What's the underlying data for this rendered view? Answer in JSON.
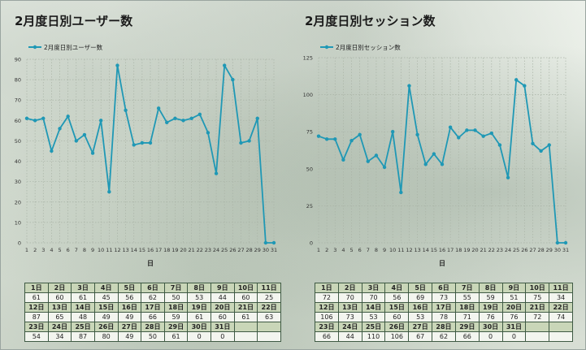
{
  "charts": {
    "left": {
      "title": "2月度日別ユーザー数",
      "chart_data": {
        "type": "line",
        "title": "2月度日別ユーザー数",
        "xlabel": "日",
        "ylabel": "",
        "x": [
          1,
          2,
          3,
          4,
          5,
          6,
          7,
          8,
          9,
          10,
          11,
          12,
          13,
          14,
          15,
          16,
          17,
          18,
          19,
          20,
          21,
          22,
          23,
          24,
          25,
          26,
          27,
          28,
          29,
          30,
          31
        ],
        "series": [
          {
            "name": "2月度日別ユーザー数",
            "values": [
              61,
              60,
              61,
              45,
              56,
              62,
              50,
              53,
              44,
              60,
              25,
              87,
              65,
              48,
              49,
              49,
              66,
              59,
              61,
              60,
              61,
              63,
              54,
              34,
              87,
              80,
              49,
              50,
              61,
              0,
              0
            ]
          }
        ],
        "ylim": [
          0,
          90
        ],
        "yticks": [
          0,
          10,
          20,
          30,
          40,
          50,
          60,
          70,
          80,
          90
        ],
        "grid": true,
        "legend_position": "top-left",
        "color": "#1f98b5"
      }
    },
    "right": {
      "title": "2月度日別セッション数",
      "chart_data": {
        "type": "line",
        "title": "2月度日別セッション数",
        "xlabel": "日",
        "ylabel": "",
        "x": [
          1,
          2,
          3,
          4,
          5,
          6,
          7,
          8,
          9,
          10,
          11,
          12,
          13,
          14,
          15,
          16,
          17,
          18,
          19,
          20,
          21,
          22,
          23,
          24,
          25,
          26,
          27,
          28,
          29,
          30,
          31
        ],
        "series": [
          {
            "name": "2月度日別セッション数",
            "values": [
              72,
              70,
              70,
              56,
              69,
              73,
              55,
              59,
              51,
              75,
              34,
              106,
              73,
              53,
              60,
              53,
              78,
              71,
              76,
              76,
              72,
              74,
              66,
              44,
              110,
              106,
              67,
              62,
              66,
              0,
              0
            ]
          }
        ],
        "ylim": [
          0,
          125
        ],
        "yticks": [
          0,
          25,
          50,
          75,
          100,
          125
        ],
        "grid": true,
        "legend_position": "top-left",
        "color": "#1f98b5"
      }
    }
  },
  "tables": {
    "left": {
      "rows": [
        {
          "headers": [
            "1日",
            "2日",
            "3日",
            "4日",
            "5日",
            "6日",
            "7日",
            "8日",
            "9日",
            "10日",
            "11日"
          ],
          "values": [
            "61",
            "60",
            "61",
            "45",
            "56",
            "62",
            "50",
            "53",
            "44",
            "60",
            "25"
          ]
        },
        {
          "headers": [
            "12日",
            "13日",
            "14日",
            "15日",
            "16日",
            "17日",
            "18日",
            "19日",
            "20日",
            "21日",
            "22日"
          ],
          "values": [
            "87",
            "65",
            "48",
            "49",
            "49",
            "66",
            "59",
            "61",
            "60",
            "61",
            "63"
          ]
        },
        {
          "headers": [
            "23日",
            "24日",
            "25日",
            "26日",
            "27日",
            "28日",
            "29日",
            "30日",
            "31日",
            "",
            ""
          ],
          "values": [
            "54",
            "34",
            "87",
            "80",
            "49",
            "50",
            "61",
            "0",
            "0",
            "",
            ""
          ]
        }
      ]
    },
    "right": {
      "rows": [
        {
          "headers": [
            "1日",
            "2日",
            "3日",
            "4日",
            "5日",
            "6日",
            "7日",
            "8日",
            "9日",
            "10日",
            "11日"
          ],
          "values": [
            "72",
            "70",
            "70",
            "56",
            "69",
            "73",
            "55",
            "59",
            "51",
            "75",
            "34"
          ]
        },
        {
          "headers": [
            "12日",
            "13日",
            "14日",
            "15日",
            "16日",
            "17日",
            "18日",
            "19日",
            "20日",
            "21日",
            "22日"
          ],
          "values": [
            "106",
            "73",
            "53",
            "60",
            "53",
            "78",
            "71",
            "76",
            "76",
            "72",
            "74"
          ]
        },
        {
          "headers": [
            "23日",
            "24日",
            "25日",
            "26日",
            "27日",
            "28日",
            "29日",
            "30日",
            "31日",
            "",
            ""
          ],
          "values": [
            "66",
            "44",
            "110",
            "106",
            "67",
            "62",
            "66",
            "0",
            "0",
            "",
            ""
          ]
        }
      ]
    }
  }
}
